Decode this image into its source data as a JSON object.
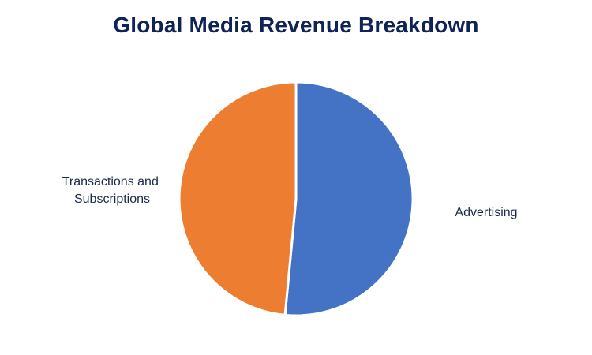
{
  "chart_data": {
    "type": "pie",
    "title": "Global Media Revenue Breakdown",
    "slices": [
      {
        "label": "Advertising",
        "value": 51.5,
        "color": "#4472C4"
      },
      {
        "label": "Transactions and Subscriptions",
        "value": 48.5,
        "color": "#ED7D31"
      }
    ],
    "start_angle_deg": 0,
    "direction": "clockwise",
    "slice_border_color": "#ffffff",
    "legend": "none",
    "data_labels": "category-name-outside"
  }
}
